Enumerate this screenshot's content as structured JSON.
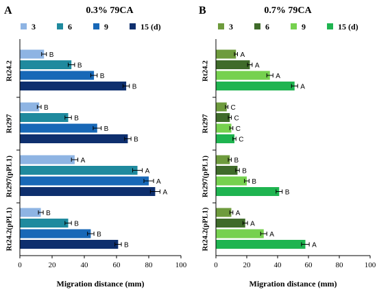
{
  "chart_data": [
    {
      "type": "bar",
      "orientation": "horizontal",
      "panel_letter": "A",
      "title": "0.3% 79CA",
      "xlabel": "Migration distance (mm)",
      "ylabel": "",
      "xlim": [
        0,
        100
      ],
      "xticks": [
        "0",
        "20",
        "40",
        "60",
        "80",
        "100"
      ],
      "grid": false,
      "legend_position": "top",
      "legend_unit": "(d)",
      "categories": [
        "Rt24.2",
        "Rt297",
        "Rt297(pPL1)",
        "Rt24.2(pPL1)"
      ],
      "series": [
        {
          "name": "3",
          "color": "#8EB4E3",
          "values": [
            15,
            12,
            34,
            13
          ],
          "errors": [
            1.5,
            1.2,
            2,
            1.5
          ],
          "labels": [
            "B",
            "B",
            "A",
            "B"
          ]
        },
        {
          "name": "6",
          "color": "#1F8A9E",
          "values": [
            32,
            30,
            73,
            30
          ],
          "errors": [
            2,
            2,
            3,
            2
          ],
          "labels": [
            "B",
            "B",
            "A",
            "B"
          ]
        },
        {
          "name": "9",
          "color": "#1868B7",
          "values": [
            46,
            48,
            80,
            44
          ],
          "errors": [
            2,
            2.5,
            3,
            2
          ],
          "labels": [
            "B",
            "B",
            "A",
            "B"
          ]
        },
        {
          "name": "15",
          "color": "#0E2F6E",
          "values": [
            66,
            67,
            84,
            61
          ],
          "errors": [
            2,
            2,
            3,
            2
          ],
          "labels": [
            "B",
            "B",
            "A",
            "B"
          ]
        }
      ]
    },
    {
      "type": "bar",
      "orientation": "horizontal",
      "panel_letter": "B",
      "title": "0.7% 79CA",
      "xlabel": "Migration distance (mm)",
      "ylabel": "",
      "xlim": [
        0,
        100
      ],
      "xticks": [
        "0",
        "20",
        "40",
        "60",
        "80",
        "100"
      ],
      "grid": false,
      "legend_position": "top",
      "legend_unit": "(d)",
      "categories": [
        "Rt24.2",
        "Rt297",
        "Rt297(pPL1)",
        "Rt24.2(pPL1)"
      ],
      "series": [
        {
          "name": "3",
          "color": "#6E9B3D",
          "values": [
            13,
            7,
            9,
            10
          ],
          "errors": [
            1,
            0.8,
            1,
            1
          ],
          "labels": [
            "A",
            "C",
            "B",
            "A"
          ]
        },
        {
          "name": "6",
          "color": "#3F6B2A",
          "values": [
            22,
            9,
            14,
            19
          ],
          "errors": [
            1.5,
            1,
            1.2,
            1.5
          ],
          "labels": [
            "A",
            "C",
            "B",
            "A"
          ]
        },
        {
          "name": "9",
          "color": "#76D14F",
          "values": [
            35,
            10,
            20,
            31
          ],
          "errors": [
            2,
            1,
            1.5,
            2
          ],
          "labels": [
            "A",
            "C",
            "B",
            "A"
          ]
        },
        {
          "name": "15",
          "color": "#1FB450",
          "values": [
            51,
            12,
            41,
            58
          ],
          "errors": [
            2,
            1,
            2,
            2.5
          ],
          "labels": [
            "A",
            "C",
            "B",
            "A"
          ]
        }
      ]
    }
  ]
}
